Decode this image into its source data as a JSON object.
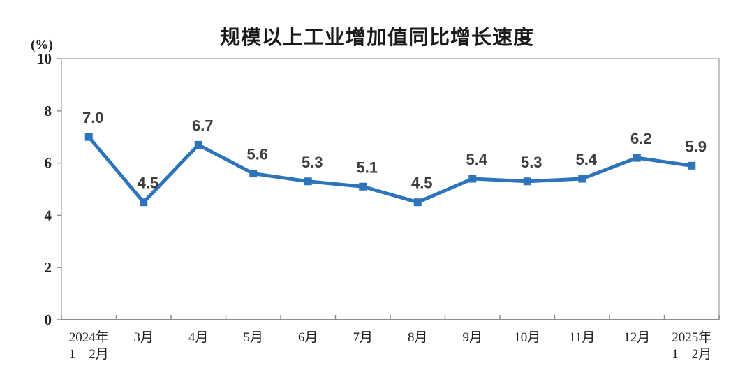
{
  "page": {
    "background": "#ffffff"
  },
  "chart_data": {
    "type": "line",
    "title": "规模以上工业增加值同比增长速度",
    "ylabel": "(%)",
    "categories": [
      "2024年\n1—2月",
      "3月",
      "4月",
      "5月",
      "6月",
      "7月",
      "8月",
      "9月",
      "10月",
      "11月",
      "12月",
      "2025年\n1—2月"
    ],
    "values": [
      7.0,
      4.5,
      6.7,
      5.6,
      5.3,
      5.1,
      4.5,
      5.4,
      5.3,
      5.4,
      6.2,
      5.9
    ],
    "point_labels": [
      "7.0",
      "4.5",
      "6.7",
      "5.6",
      "5.3",
      "5.1",
      "4.5",
      "5.4",
      "5.3",
      "5.4",
      "6.2",
      "5.9"
    ],
    "ylim": [
      0,
      10
    ],
    "yticks": [
      0,
      2,
      4,
      6,
      8,
      10
    ],
    "grid": false,
    "legend": "none",
    "colors": {
      "line": "#2E74BB",
      "marker": "#2E74BB",
      "point_label": "#3D3D3D",
      "axis_text": "#1F1F1F",
      "plot_border": "#AFAFAF",
      "axis_line": "#8C8C8C",
      "title": "#1A1A1A"
    }
  }
}
